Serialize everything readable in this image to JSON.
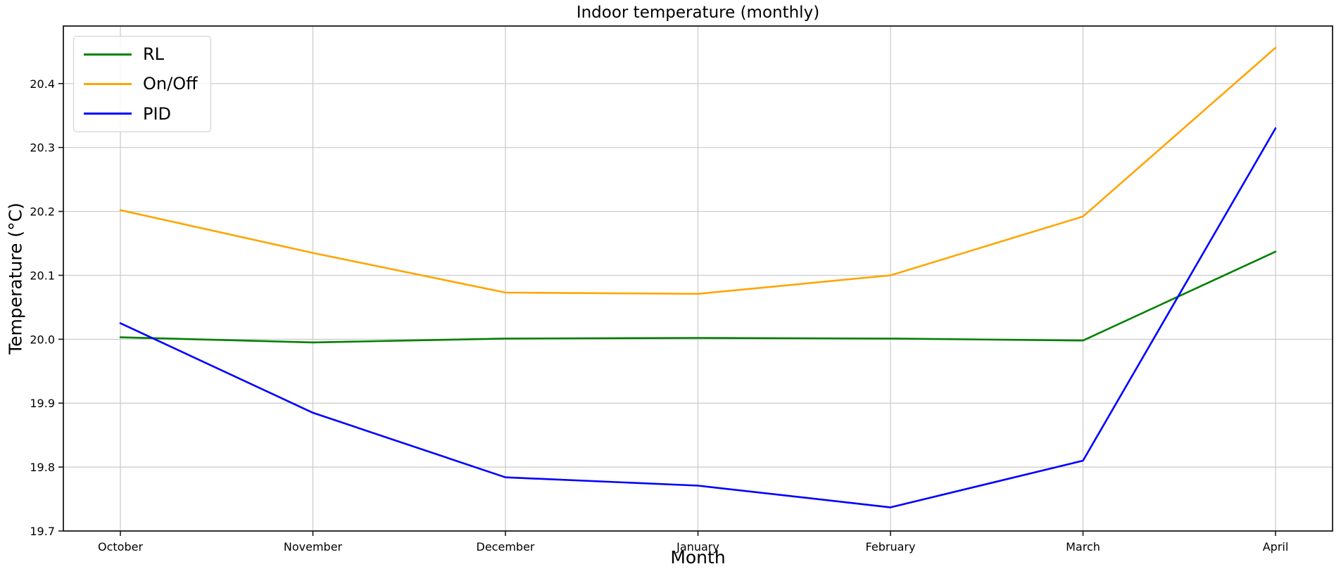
{
  "chart_data": {
    "type": "line",
    "title": "Indoor temperature (monthly)",
    "xlabel": "Month",
    "ylabel": "Temperature (°C)",
    "categories": [
      "October",
      "November",
      "December",
      "January",
      "February",
      "March",
      "April"
    ],
    "series": [
      {
        "name": "RL",
        "color": "#008000",
        "values": [
          20.003,
          19.995,
          20.001,
          20.002,
          20.001,
          19.998,
          20.137
        ]
      },
      {
        "name": "On/Off",
        "color": "#FFA500",
        "values": [
          20.202,
          20.135,
          20.073,
          20.071,
          20.1,
          20.192,
          20.456
        ]
      },
      {
        "name": "PID",
        "color": "#0000FF",
        "values": [
          20.025,
          19.885,
          19.784,
          19.771,
          19.737,
          19.81,
          20.33
        ]
      }
    ],
    "ylim": [
      19.7,
      20.49
    ],
    "yticks": [
      19.7,
      19.8,
      19.9,
      20.0,
      20.1,
      20.2,
      20.3,
      20.4
    ],
    "grid": true,
    "legend_position": "upper left",
    "line_width": 2.6
  },
  "colors": {
    "background": "#ffffff",
    "grid": "#c9c9c9",
    "spine": "#1a1a1a",
    "tick": "#1a1a1a",
    "text": "#000000"
  }
}
